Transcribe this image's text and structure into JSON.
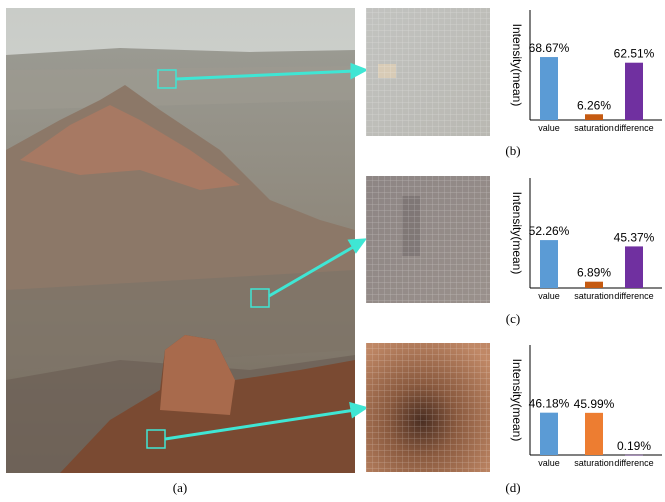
{
  "panels": {
    "a": "(a)",
    "b": "(b)",
    "c": "(c)",
    "d": "(d)"
  },
  "chart_data": [
    {
      "type": "bar",
      "ylabel": "Intensity(mean)",
      "categories": [
        "value",
        "saturation",
        "difference"
      ],
      "values": [
        68.67,
        6.26,
        62.51
      ],
      "value_labels": [
        "68.67%",
        "6.26%",
        "62.51%"
      ],
      "colors": [
        "#5b9bd5",
        "#c55a11",
        "#7030a0"
      ],
      "ylim": [
        0,
        120
      ]
    },
    {
      "type": "bar",
      "ylabel": "Intensity(mean)",
      "categories": [
        "value",
        "saturation",
        "difference"
      ],
      "values": [
        52.26,
        6.89,
        45.37
      ],
      "value_labels": [
        "52.26%",
        "6.89%",
        "45.37%"
      ],
      "colors": [
        "#5b9bd5",
        "#c55a11",
        "#7030a0"
      ],
      "ylim": [
        0,
        120
      ]
    },
    {
      "type": "bar",
      "ylabel": "Intensity(mean)",
      "categories": [
        "value",
        "saturation",
        "difference"
      ],
      "values": [
        46.18,
        45.99,
        0.19
      ],
      "value_labels": [
        "46.18%",
        "45.99%",
        "0.19%"
      ],
      "colors": [
        "#5b9bd5",
        "#ed7d31",
        "#7030a0"
      ],
      "ylim": [
        0,
        120
      ]
    }
  ]
}
